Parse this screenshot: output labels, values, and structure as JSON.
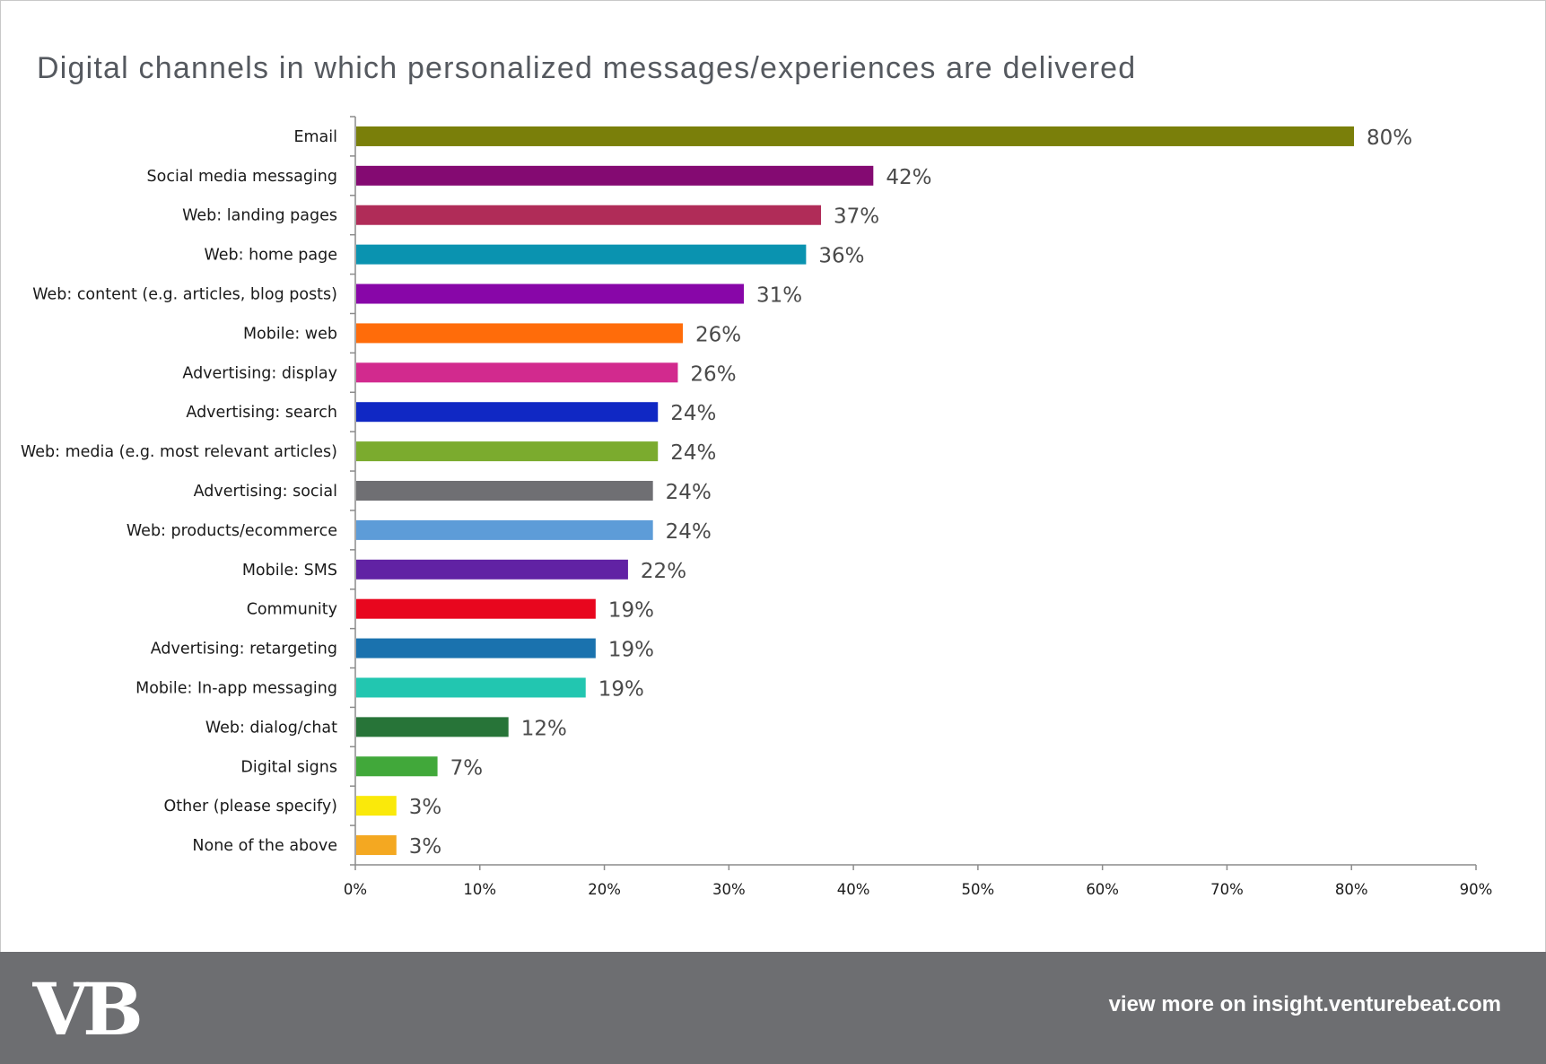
{
  "chart_data": {
    "type": "bar",
    "orientation": "horizontal",
    "title": "Digital channels in which personalized messages/experiences are delivered",
    "xlabel": "",
    "ylabel": "",
    "xlim": [
      0,
      90
    ],
    "x_ticks": [
      "0%",
      "10%",
      "20%",
      "30%",
      "40%",
      "50%",
      "60%",
      "70%",
      "80%",
      "90%"
    ],
    "grid": false,
    "legend": "none",
    "categories": [
      "Email",
      "Social media messaging",
      "Web: landing pages",
      "Web: home page",
      "Web: content (e.g. articles, blog posts)",
      "Mobile: web",
      "Advertising: display",
      "Advertising: search",
      "Web: media (e.g. most relevant articles)",
      "Advertising: social",
      "Web: products/ecommerce",
      "Mobile: SMS",
      "Community",
      "Advertising: retargeting",
      "Mobile: In-app messaging",
      "Web: dialog/chat",
      "Digital signs",
      "Other (please specify)",
      "None of the above"
    ],
    "values": [
      80.2,
      41.6,
      37.4,
      36.2,
      31.2,
      26.3,
      25.9,
      24.3,
      24.3,
      23.9,
      23.9,
      21.9,
      19.3,
      19.3,
      18.5,
      12.3,
      6.6,
      3.3,
      3.3
    ],
    "value_labels": [
      "80%",
      "42%",
      "37%",
      "36%",
      "31%",
      "26%",
      "26%",
      "24%",
      "24%",
      "24%",
      "24%",
      "22%",
      "19%",
      "19%",
      "19%",
      "12%",
      "7%",
      "3%",
      "3%"
    ],
    "colors": [
      "#7a7f0a",
      "#840a72",
      "#b02c58",
      "#0a93b0",
      "#8806a8",
      "#ff6c0a",
      "#d22a8e",
      "#1028c4",
      "#7bab2e",
      "#6f6f73",
      "#5d9cd8",
      "#6122a4",
      "#e8061e",
      "#1a72ae",
      "#22c6b0",
      "#277438",
      "#41a83a",
      "#fae90a",
      "#f4a821"
    ]
  },
  "footer": {
    "logo_text": "VB",
    "link_text": "view more on insight.venturebeat.com",
    "background": "#6d6e71"
  }
}
